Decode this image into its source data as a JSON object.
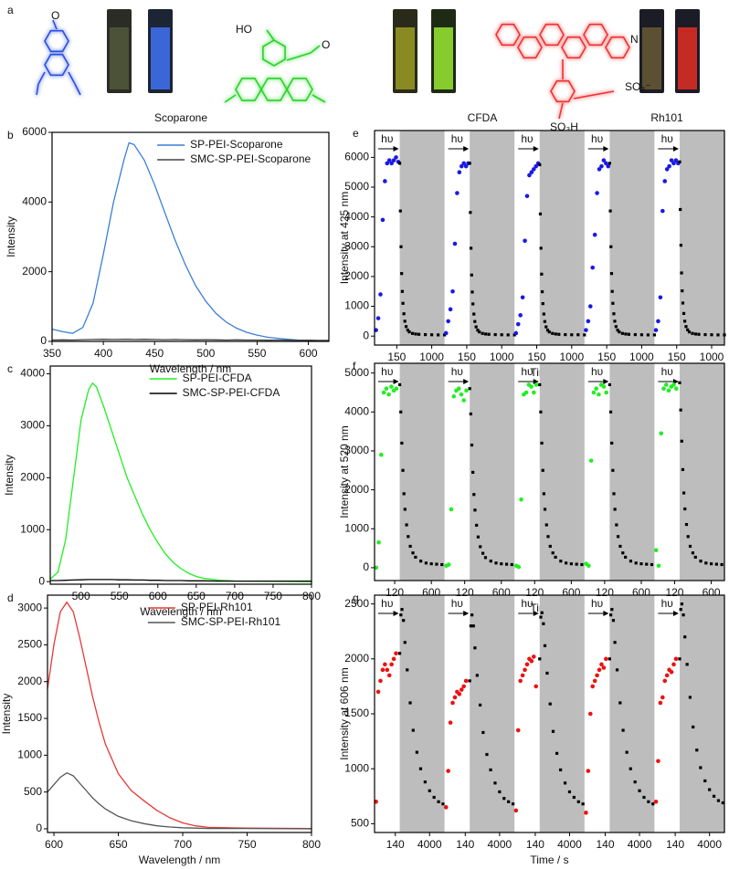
{
  "header": {
    "panel": "a",
    "compounds": [
      "Scoparone",
      "CFDA",
      "Rh101"
    ],
    "atom_labels": [
      "O",
      "HO",
      "O",
      "N",
      "SO₃⁻",
      "SO₃H"
    ]
  },
  "chart_data": [
    {
      "type": "line",
      "panel": "b",
      "xlabel": "Wavelength / nm",
      "ylabel": "Intensity",
      "legend": "upper right",
      "xlim": [
        350,
        620
      ],
      "xticks": [
        350,
        400,
        450,
        500,
        550,
        600
      ],
      "ylim": [
        0,
        6000
      ],
      "yticks": [
        0,
        2000,
        4000,
        6000
      ],
      "x": [
        350,
        360,
        370,
        380,
        390,
        400,
        410,
        420,
        425,
        430,
        440,
        450,
        460,
        470,
        480,
        490,
        500,
        510,
        520,
        530,
        540,
        550,
        560,
        570,
        580,
        590,
        600,
        610,
        620
      ],
      "series": [
        {
          "name": "SP-PEI-Scoparone",
          "color": "#3a7fd5",
          "values": [
            350,
            280,
            230,
            400,
            1100,
            2500,
            4000,
            5200,
            5700,
            5650,
            5200,
            4500,
            3700,
            2900,
            2200,
            1600,
            1150,
            800,
            550,
            380,
            260,
            180,
            120,
            90,
            60,
            40,
            30,
            20,
            20
          ]
        },
        {
          "name": "SMC-SP-PEI-Scoparone",
          "color": "#444444",
          "values": [
            40,
            45,
            40,
            50,
            55,
            60,
            55,
            60,
            60,
            55,
            60,
            55,
            50,
            55,
            50,
            45,
            50,
            45,
            40,
            45,
            40,
            40,
            35,
            40,
            35,
            30,
            35,
            30,
            30
          ]
        }
      ]
    },
    {
      "type": "line",
      "panel": "c",
      "xlabel": "Wavelength / nm",
      "ylabel": "Intensity",
      "legend": "upper right",
      "xlim": [
        460,
        800
      ],
      "xticks": [
        500,
        550,
        600,
        650,
        700,
        750,
        800
      ],
      "ylim": [
        -50,
        4150
      ],
      "yticks": [
        0,
        1000,
        2000,
        3000,
        4000
      ],
      "x": [
        460,
        470,
        480,
        490,
        500,
        510,
        515,
        520,
        530,
        540,
        550,
        560,
        570,
        580,
        590,
        600,
        610,
        620,
        630,
        640,
        650,
        660,
        680,
        700,
        750,
        800
      ],
      "series": [
        {
          "name": "SP-PEI-CFDA",
          "color": "#22ee22",
          "values": [
            50,
            180,
            800,
            1950,
            3100,
            3700,
            3820,
            3750,
            3350,
            2900,
            2450,
            2000,
            1650,
            1300,
            1000,
            750,
            530,
            370,
            250,
            160,
            100,
            60,
            25,
            12,
            5,
            0
          ]
        },
        {
          "name": "SMC-SP-PEI-CFDA",
          "color": "#000000",
          "values": [
            20,
            20,
            25,
            30,
            35,
            40,
            40,
            40,
            40,
            40,
            35,
            35,
            30,
            30,
            25,
            25,
            20,
            20,
            20,
            15,
            15,
            15,
            10,
            10,
            10,
            10
          ]
        }
      ]
    },
    {
      "type": "line",
      "panel": "d",
      "xlabel": "Wavelength / nm",
      "ylabel": "Intensity",
      "legend": "upper right",
      "xlim": [
        595,
        800
      ],
      "xticks": [
        600,
        650,
        700,
        750,
        800
      ],
      "ylim": [
        -50,
        3175
      ],
      "yticks": [
        0,
        500,
        1000,
        1500,
        2000,
        2500,
        3000
      ],
      "x": [
        595,
        600,
        605,
        610,
        615,
        620,
        625,
        630,
        635,
        640,
        650,
        660,
        670,
        680,
        690,
        700,
        710,
        720,
        750,
        800
      ],
      "series": [
        {
          "name": "SP-PEI-Rh101",
          "color": "#e53935",
          "values": [
            1900,
            2500,
            2950,
            3080,
            2950,
            2600,
            2200,
            1800,
            1450,
            1150,
            750,
            520,
            380,
            250,
            150,
            80,
            40,
            20,
            10,
            5
          ]
        },
        {
          "name": "SMC-SP-PEI-Rh101",
          "color": "#555555",
          "values": [
            500,
            600,
            700,
            760,
            720,
            620,
            520,
            420,
            340,
            270,
            170,
            110,
            70,
            40,
            25,
            15,
            10,
            5,
            5,
            0
          ]
        }
      ]
    },
    {
      "type": "scatter",
      "panel": "e",
      "xlabel": "Time / s",
      "ylabel": "Intensity at 425 nm",
      "light_label": "hυ",
      "color": "#1a1ae6",
      "dark_color": "#000000",
      "ylim": [
        -300,
        6900
      ],
      "yticks": [
        0,
        1000,
        2000,
        3000,
        4000,
        5000,
        6000
      ],
      "light": {
        "xlim": [
          0,
          170
        ],
        "xticks": [
          150
        ],
        "x": [
          10,
          25,
          40,
          55,
          70,
          85,
          100,
          115,
          130,
          145,
          160
        ]
      },
      "dark": {
        "xlim": [
          0,
          1400
        ],
        "xticks": [
          1000
        ],
        "x": [
          0,
          20,
          40,
          60,
          80,
          100,
          130,
          160,
          200,
          250,
          300,
          400,
          500,
          600,
          800,
          1000,
          1200,
          1400
        ]
      },
      "series": [
        {
          "light": [
            200,
            600,
            1400,
            3900,
            5200,
            5800,
            5900,
            5800,
            5900,
            6000,
            5850
          ],
          "dark": [
            5800,
            4200,
            3000,
            2100,
            1500,
            1100,
            750,
            500,
            320,
            200,
            140,
            90,
            70,
            60,
            50,
            45,
            40,
            40
          ]
        },
        {
          "light": [
            100,
            500,
            900,
            1500,
            3100,
            4800,
            5500,
            5700,
            5800,
            5700,
            5800
          ],
          "dark": [
            5800,
            4150,
            2950,
            2050,
            1480,
            1080,
            740,
            490,
            310,
            200,
            140,
            90,
            70,
            60,
            50,
            45,
            40,
            40
          ]
        },
        {
          "light": [
            100,
            400,
            700,
            1300,
            3200,
            4700,
            5400,
            5500,
            5600,
            5700,
            5800
          ],
          "dark": [
            5750,
            4100,
            2950,
            2080,
            1490,
            1090,
            740,
            490,
            310,
            200,
            140,
            90,
            70,
            60,
            50,
            45,
            45,
            40
          ]
        },
        {
          "light": [
            200,
            500,
            1000,
            2300,
            3400,
            4800,
            5600,
            5700,
            5900,
            5800,
            5700
          ],
          "dark": [
            5800,
            4200,
            3000,
            2100,
            1500,
            1100,
            750,
            500,
            320,
            200,
            140,
            90,
            70,
            60,
            50,
            45,
            40,
            40
          ]
        },
        {
          "light": [
            200,
            500,
            1300,
            4200,
            5200,
            5600,
            5700,
            5900,
            5800,
            5900,
            5800
          ],
          "dark": [
            5850,
            4250,
            3050,
            2120,
            1520,
            1110,
            760,
            500,
            320,
            210,
            140,
            90,
            70,
            60,
            50,
            45,
            40,
            40
          ]
        }
      ]
    },
    {
      "type": "scatter",
      "panel": "f",
      "xlabel": "Time / s",
      "ylabel": "Intensity at 520 nm",
      "light_label": "hυ",
      "color": "#22ee22",
      "dark_color": "#000000",
      "ylim": [
        -330,
        5250
      ],
      "yticks": [
        0,
        1000,
        2000,
        3000,
        4000,
        5000
      ],
      "light": {
        "xlim": [
          0,
          150
        ],
        "xticks": [
          120
        ],
        "x": [
          10,
          25,
          40,
          55,
          70,
          85,
          100,
          115,
          130
        ]
      },
      "dark": {
        "xlim": [
          0,
          850
        ],
        "xticks": [
          600
        ],
        "x": [
          0,
          20,
          40,
          60,
          80,
          100,
          130,
          160,
          200,
          250,
          300,
          400,
          500,
          600,
          700,
          800
        ]
      },
      "series": [
        {
          "light": [
            0,
            650,
            2900,
            4500,
            4600,
            4450,
            4650,
            4550,
            4600
          ],
          "dark": [
            4700,
            4000,
            3200,
            2500,
            1900,
            1500,
            1100,
            800,
            550,
            380,
            270,
            170,
            120,
            100,
            90,
            80
          ]
        },
        {
          "light": [
            50,
            80,
            1500,
            4400,
            4550,
            4600,
            4450,
            4300,
            4550
          ],
          "dark": [
            4600,
            3950,
            3150,
            2450,
            1880,
            1480,
            1090,
            790,
            540,
            370,
            260,
            170,
            120,
            100,
            90,
            80
          ]
        },
        {
          "light": [
            50,
            20,
            1750,
            4450,
            4500,
            4700,
            4650,
            4500,
            4700
          ],
          "dark": [
            4700,
            4000,
            3200,
            2500,
            1900,
            1500,
            1100,
            800,
            550,
            380,
            270,
            170,
            120,
            100,
            90,
            80
          ]
        },
        {
          "light": [
            100,
            50,
            2750,
            4500,
            4600,
            4450,
            4700,
            4650,
            4500
          ],
          "dark": [
            4700,
            4000,
            3200,
            2500,
            1900,
            1500,
            1100,
            800,
            550,
            380,
            270,
            170,
            120,
            100,
            90,
            80
          ]
        },
        {
          "light": [
            450,
            50,
            3450,
            4600,
            4700,
            4550,
            4650,
            4700,
            4600
          ],
          "dark": [
            4750,
            4050,
            3250,
            2520,
            1920,
            1510,
            1110,
            800,
            550,
            380,
            270,
            170,
            120,
            100,
            90,
            80
          ]
        }
      ]
    },
    {
      "type": "scatter",
      "panel": "g",
      "xlabel": "Time / s",
      "ylabel": "Intensity at 606 nm",
      "light_label": "hυ",
      "color": "#ee1111",
      "dark_color": "#000000",
      "ylim": [
        420,
        2580
      ],
      "yticks": [
        500,
        1000,
        1500,
        2000,
        2500
      ],
      "light": {
        "xlim": [
          0,
          170
        ],
        "xticks": [
          140
        ],
        "x": [
          10,
          25,
          40,
          55,
          70,
          85,
          100,
          115,
          130,
          145
        ]
      },
      "dark": {
        "xlim": [
          0,
          6000
        ],
        "xticks": [
          4000
        ],
        "x": [
          0,
          150,
          300,
          500,
          700,
          1000,
          1400,
          1800,
          2300,
          2800,
          3400,
          4000,
          4600,
          5200,
          5800
        ]
      },
      "series": [
        {
          "light": [
            700,
            1700,
            1800,
            1900,
            1950,
            1900,
            1850,
            1950,
            2000,
            2050
          ],
          "dark": [
            2050,
            2400,
            2450,
            2350,
            2150,
            1900,
            1600,
            1350,
            1150,
            1000,
            880,
            800,
            740,
            700,
            680
          ]
        },
        {
          "light": [
            650,
            980,
            1420,
            1600,
            1650,
            1700,
            1680,
            1720,
            1750,
            1800
          ],
          "dark": [
            1800,
            2300,
            2400,
            2300,
            2100,
            1850,
            1580,
            1330,
            1130,
            990,
            870,
            790,
            730,
            700,
            680
          ]
        },
        {
          "light": [
            620,
            1350,
            1800,
            1850,
            1900,
            1950,
            2000,
            1980,
            2020,
            1750
          ],
          "dark": [
            2000,
            2380,
            2420,
            2320,
            2120,
            1870,
            1590,
            1340,
            1140,
            990,
            870,
            790,
            740,
            700,
            680
          ]
        },
        {
          "light": [
            600,
            980,
            1500,
            1750,
            1800,
            1850,
            1900,
            1950,
            1920,
            2000
          ],
          "dark": [
            2000,
            2400,
            2450,
            2350,
            2150,
            1900,
            1600,
            1350,
            1150,
            1000,
            880,
            800,
            740,
            700,
            680
          ]
        },
        {
          "light": [
            700,
            1070,
            1600,
            1650,
            1800,
            1850,
            1900,
            1880,
            1950,
            2000
          ],
          "dark": [
            2000,
            2450,
            2500,
            2400,
            2200,
            1950,
            1650,
            1380,
            1170,
            1010,
            890,
            810,
            750,
            710,
            690
          ]
        }
      ]
    }
  ]
}
